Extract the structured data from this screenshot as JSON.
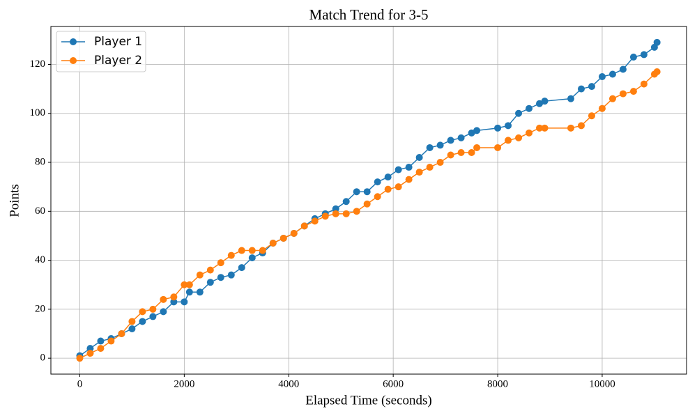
{
  "chart_data": {
    "type": "line",
    "title": "Match Trend for 3-5",
    "x_label": "Elapsed Time (seconds)",
    "y_label": "Points",
    "x": [
      0,
      200,
      400,
      600,
      800,
      1000,
      1200,
      1400,
      1600,
      1800,
      2000,
      2100,
      2300,
      2500,
      2700,
      2900,
      3100,
      3300,
      3500,
      3700,
      3900,
      4100,
      4300,
      4500,
      4700,
      4900,
      5100,
      5300,
      5500,
      5700,
      5900,
      6100,
      6300,
      6500,
      6700,
      6900,
      7100,
      7300,
      7500,
      7600,
      8000,
      8200,
      8400,
      8600,
      8800,
      8900,
      9400,
      9600,
      9800,
      10000,
      10200,
      10400,
      10600,
      10800,
      11000,
      11050
    ],
    "series": [
      {
        "name": "Player 1",
        "color": "#1f77b4",
        "values": [
          1,
          4,
          7,
          8,
          10,
          12,
          15,
          17,
          19,
          23,
          23,
          27,
          27,
          31,
          33,
          34,
          37,
          41,
          43,
          47,
          49,
          51,
          54,
          57,
          59,
          61,
          64,
          68,
          68,
          72,
          74,
          77,
          78,
          82,
          86,
          87,
          89,
          90,
          92,
          93,
          94,
          95,
          100,
          102,
          104,
          105,
          106,
          110,
          111,
          115,
          116,
          118,
          123,
          124,
          127,
          129
        ]
      },
      {
        "name": "Player 2",
        "color": "#ff7f0e",
        "values": [
          0,
          2,
          4,
          7,
          10,
          15,
          19,
          20,
          24,
          25,
          30,
          30,
          34,
          36,
          39,
          42,
          44,
          44,
          44,
          47,
          49,
          51,
          54,
          56,
          58,
          59,
          59,
          60,
          63,
          66,
          69,
          70,
          73,
          76,
          78,
          80,
          83,
          84,
          84,
          86,
          86,
          89,
          90,
          92,
          94,
          94,
          94,
          95,
          99,
          102,
          106,
          108,
          109,
          112,
          116,
          117
        ]
      }
    ],
    "xlim": [
      -553,
      11615
    ],
    "ylim": [
      -6.5,
      135.5
    ],
    "xticks": [
      0,
      2000,
      4000,
      6000,
      8000,
      10000
    ],
    "yticks": [
      0,
      20,
      40,
      60,
      80,
      100,
      120
    ],
    "grid": true,
    "legend": "upper left"
  }
}
